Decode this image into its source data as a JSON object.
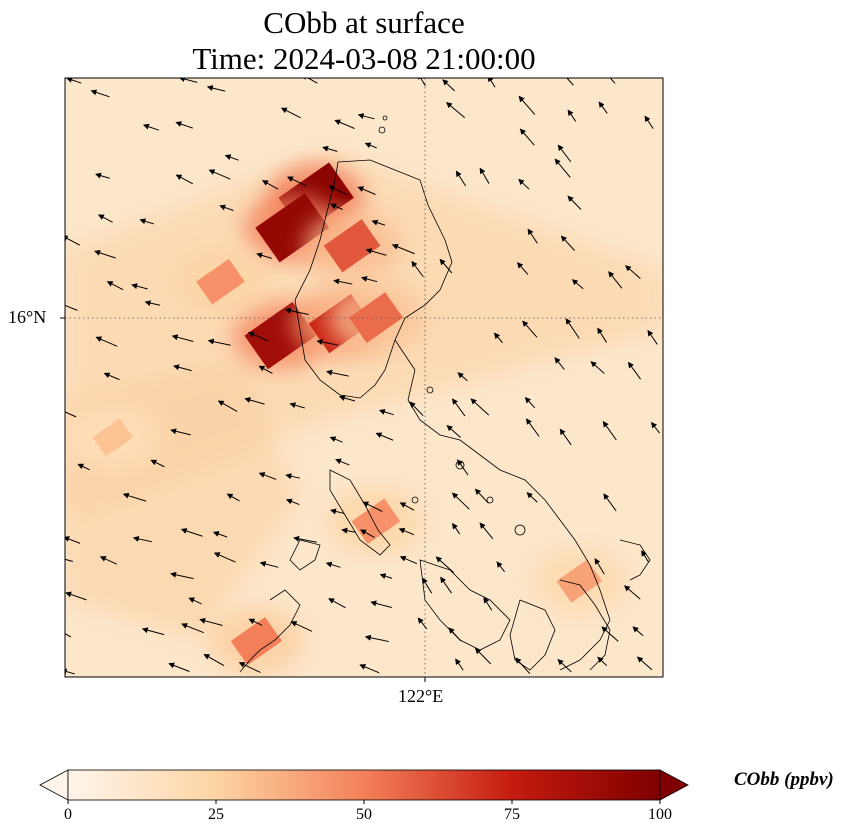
{
  "map": {
    "title_line1": "CObb at surface",
    "title_line2": "Time: 2024-03-08 21:00:00",
    "lat_tick_label": "16°N",
    "lon_tick_label": "122°E",
    "extent": {
      "lon_min": 119.0,
      "lon_max": 124.0,
      "lat_min": 13.0,
      "lat_max": 18.0
    },
    "gridlines": {
      "lat": 16.0,
      "lon": 122.0,
      "style": "dotted"
    },
    "ocean_fill": "#fce7cb",
    "coastline_color": "#000000",
    "wind_arrow_color": "#000000",
    "hotspots": [
      {
        "lon": 121.1,
        "lat": 17.0,
        "value": 95
      },
      {
        "lon": 120.9,
        "lat": 16.75,
        "value": 92
      },
      {
        "lon": 121.4,
        "lat": 16.6,
        "value": 60
      },
      {
        "lon": 120.8,
        "lat": 15.85,
        "value": 88
      },
      {
        "lon": 121.3,
        "lat": 15.95,
        "value": 72
      },
      {
        "lon": 120.3,
        "lat": 16.3,
        "value": 45
      },
      {
        "lon": 121.6,
        "lat": 16.0,
        "value": 55
      },
      {
        "lon": 119.4,
        "lat": 15.0,
        "value": 30
      },
      {
        "lon": 121.6,
        "lat": 14.3,
        "value": 45
      },
      {
        "lon": 120.6,
        "lat": 13.3,
        "value": 50
      },
      {
        "lon": 123.3,
        "lat": 13.8,
        "value": 40
      }
    ]
  },
  "colorbar": {
    "label": "CObb (ppbv)",
    "min": 0,
    "max": 100,
    "extend": "both",
    "ticks": [
      "0",
      "25",
      "50",
      "75",
      "100"
    ],
    "colors": [
      "#fff5eb",
      "#fdd4a3",
      "#f4805a",
      "#c51b0f",
      "#7f0000"
    ]
  }
}
